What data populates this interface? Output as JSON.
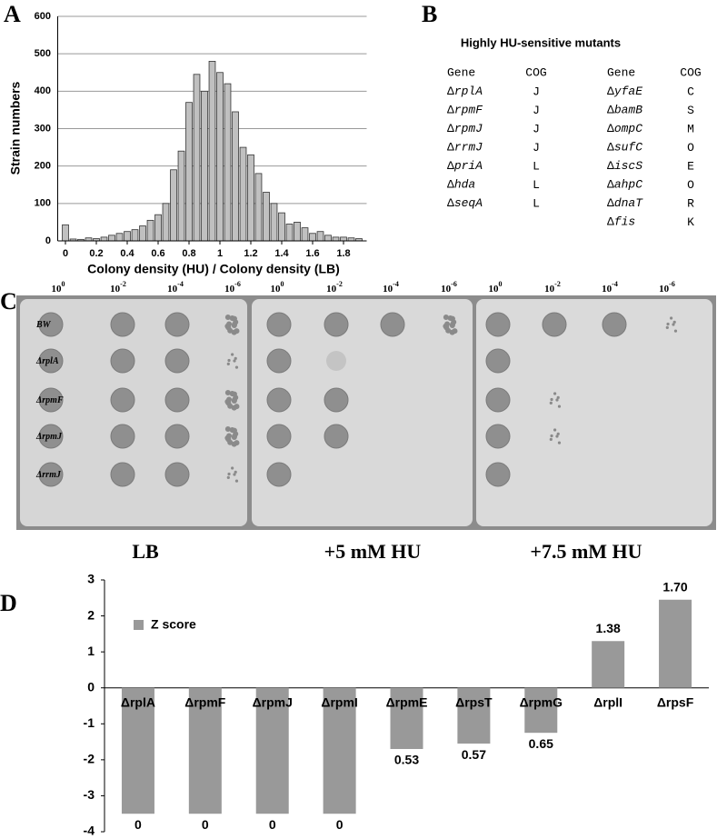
{
  "panel_labels": [
    "A",
    "B",
    "C",
    "D"
  ],
  "chart_data": [
    {
      "type": "histogram",
      "x_label": "Colony density (HU) / Colony density (LB)",
      "y_label": "Strain numbers",
      "bins": [
        -0.025,
        0.025,
        0.075,
        0.125,
        0.175,
        0.225,
        0.275,
        0.325,
        0.375,
        0.425,
        0.475,
        0.525,
        0.575,
        0.625,
        0.675,
        0.725,
        0.775,
        0.825,
        0.875,
        0.925,
        0.975,
        1.025,
        1.075,
        1.125,
        1.175,
        1.225,
        1.275,
        1.325,
        1.375,
        1.425,
        1.475,
        1.525,
        1.575,
        1.625,
        1.675,
        1.725,
        1.775,
        1.825,
        1.875,
        1.925
      ],
      "counts": [
        43,
        5,
        4,
        8,
        6,
        10,
        15,
        20,
        25,
        30,
        40,
        55,
        70,
        100,
        190,
        240,
        370,
        445,
        400,
        480,
        450,
        420,
        345,
        250,
        230,
        180,
        130,
        100,
        75,
        45,
        50,
        35,
        20,
        25,
        15,
        10,
        10,
        8,
        6
      ],
      "color": "#c0c0c0",
      "xlim": [
        -0.05,
        1.95
      ],
      "xticks": [
        0,
        0.2,
        0.4,
        0.6,
        0.8,
        1,
        1.2,
        1.4,
        1.6,
        1.8
      ],
      "ylim": [
        0,
        600
      ],
      "yticks": [
        0,
        100,
        200,
        300,
        400,
        500,
        600
      ],
      "grid": true
    },
    {
      "type": "bar",
      "categories": [
        "ΔrplA",
        "ΔrpmF",
        "ΔrpmJ",
        "ΔrpmI",
        "ΔrpmE",
        "ΔrpsT",
        "ΔrpmG",
        "ΔrplI",
        "ΔrpsF"
      ],
      "series": [
        {
          "name": "Z score",
          "color": "#999999",
          "values": [
            -3.5,
            -3.5,
            -3.5,
            -3.5,
            -1.7,
            -1.55,
            -1.25,
            1.3,
            2.45
          ]
        }
      ],
      "ratio_labels": [
        "0",
        "0",
        "0",
        "0",
        "0.53",
        "0.57",
        "0.65",
        "1.38",
        "1.70"
      ],
      "ylim": [
        -4,
        3
      ],
      "yticks": [
        -4,
        -3,
        -2,
        -1,
        0,
        1,
        2,
        3
      ],
      "legend": "upper left"
    }
  ],
  "table_b": {
    "title": "Highly HU-sensitive mutants",
    "headers": [
      "Gene",
      "COG",
      "Gene",
      "COG"
    ],
    "rows_left": [
      [
        "ΔrplA",
        "J"
      ],
      [
        "ΔrpmF",
        "J"
      ],
      [
        "ΔrpmJ",
        "J"
      ],
      [
        "ΔrrmJ",
        "J"
      ],
      [
        "ΔpriA",
        "L"
      ],
      [
        "Δhda",
        "L"
      ],
      [
        "ΔseqA",
        "L"
      ]
    ],
    "rows_right": [
      [
        "ΔyfaE",
        "C"
      ],
      [
        "ΔbamB",
        "S"
      ],
      [
        "ΔompC",
        "M"
      ],
      [
        "ΔsufC",
        "O"
      ],
      [
        "ΔiscS",
        "E"
      ],
      [
        "ΔahpC",
        "O"
      ],
      [
        "ΔdnaT",
        "R"
      ],
      [
        "Δfis",
        "K"
      ]
    ]
  },
  "plates_c": {
    "dilutions": [
      {
        "base": "10",
        "exp": "0"
      },
      {
        "base": "10",
        "exp": "-2"
      },
      {
        "base": "10",
        "exp": "-4"
      },
      {
        "base": "10",
        "exp": "-6"
      }
    ],
    "strains": [
      "BW",
      "ΔrplA",
      "ΔrpmF",
      "ΔrpmJ",
      "ΔrrmJ"
    ],
    "conditions": [
      "LB",
      "+5 mM HU",
      "+7.5 mM HU"
    ]
  }
}
